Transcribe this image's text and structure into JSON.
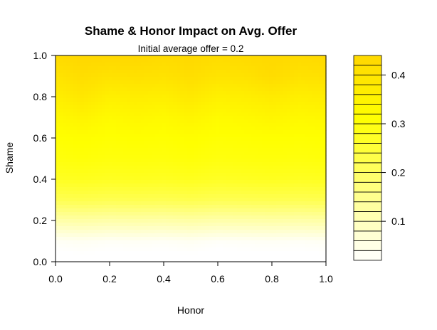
{
  "chart_data": {
    "type": "heatmap",
    "title": "Shame & Honor Impact on Avg. Offer",
    "subtitle": "Initial average offer = 0.2",
    "xlabel": "Honor",
    "ylabel": "Shame",
    "xlim": [
      0,
      1
    ],
    "ylim": [
      0,
      1
    ],
    "x_ticks": [
      "0.0",
      "0.2",
      "0.4",
      "0.6",
      "0.8",
      "1.0"
    ],
    "y_ticks": [
      "0.0",
      "0.2",
      "0.4",
      "0.6",
      "0.8",
      "1.0"
    ],
    "x": [
      0.0,
      0.1,
      0.2,
      0.3,
      0.4,
      0.5,
      0.6,
      0.7,
      0.8,
      0.9,
      1.0
    ],
    "y": [
      0.0,
      0.1,
      0.2,
      0.3,
      0.4,
      0.5,
      0.6,
      0.7,
      0.8,
      0.9,
      1.0
    ],
    "z": [
      [
        0.01,
        0.012,
        0.01,
        0.011,
        0.01,
        0.012,
        0.008,
        0.011,
        0.012,
        0.011,
        0.012
      ],
      [
        0.03,
        0.035,
        0.03,
        0.032,
        0.03,
        0.035,
        0.028,
        0.03,
        0.032,
        0.03,
        0.033
      ],
      [
        0.12,
        0.125,
        0.12,
        0.122,
        0.12,
        0.125,
        0.118,
        0.12,
        0.122,
        0.12,
        0.123
      ],
      [
        0.22,
        0.225,
        0.22,
        0.222,
        0.22,
        0.225,
        0.218,
        0.22,
        0.222,
        0.22,
        0.223
      ],
      [
        0.275,
        0.28,
        0.275,
        0.278,
        0.275,
        0.28,
        0.272,
        0.275,
        0.278,
        0.275,
        0.278
      ],
      [
        0.3,
        0.305,
        0.3,
        0.302,
        0.3,
        0.305,
        0.298,
        0.3,
        0.302,
        0.3,
        0.303
      ],
      [
        0.312,
        0.318,
        0.312,
        0.315,
        0.312,
        0.318,
        0.31,
        0.312,
        0.315,
        0.312,
        0.315
      ],
      [
        0.335,
        0.35,
        0.33,
        0.34,
        0.332,
        0.348,
        0.328,
        0.335,
        0.345,
        0.335,
        0.34
      ],
      [
        0.365,
        0.39,
        0.362,
        0.37,
        0.365,
        0.385,
        0.36,
        0.365,
        0.378,
        0.365,
        0.372
      ],
      [
        0.4,
        0.42,
        0.405,
        0.41,
        0.405,
        0.418,
        0.4,
        0.405,
        0.425,
        0.405,
        0.41
      ],
      [
        0.43,
        0.44,
        0.44,
        0.44,
        0.43,
        0.435,
        0.425,
        0.43,
        0.435,
        0.43,
        0.435
      ]
    ],
    "zlim": [
      0.02,
      0.44
    ],
    "colorbar_ticks": [
      "0.1",
      "0.2",
      "0.3",
      "0.4"
    ],
    "colorbar_tick_values": [
      0.1,
      0.2,
      0.3,
      0.4
    ],
    "colorbar_levels": 21,
    "palette": {
      "low": "#ffffff",
      "mid": "#ffff00",
      "high": "#ffd700"
    },
    "grid": false,
    "legend": "right"
  }
}
